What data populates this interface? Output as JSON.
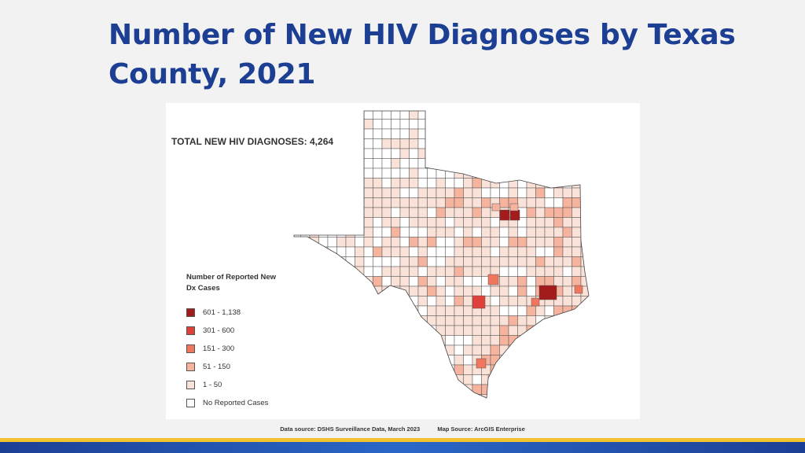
{
  "title": "Number of New HIV Diagnoses by Texas County, 2021",
  "map": {
    "total_label": "TOTAL NEW HIV DIAGNOSES: 4,264",
    "legend": {
      "title": "Number of Reported New Dx Cases",
      "items": [
        {
          "label": "601 - 1,138",
          "color": "#a31b1b"
        },
        {
          "label": "301 - 600",
          "color": "#e0403a"
        },
        {
          "label": "151 - 300",
          "color": "#f0775e"
        },
        {
          "label": "51 - 150",
          "color": "#f6b49f"
        },
        {
          "label": "1 - 50",
          "color": "#fbe2d8"
        },
        {
          "label": "No Reported Cases",
          "color": "#ffffff"
        }
      ]
    }
  },
  "footer": {
    "data_source": "Data source: DSHS Surveillance Data, March 2023",
    "map_source": "Map Source: ArcGIS Enterprise"
  },
  "colors": {
    "title": "#1c3f94",
    "gold_bar": "#f2c230",
    "blue_bar": "#1c3f94"
  }
}
